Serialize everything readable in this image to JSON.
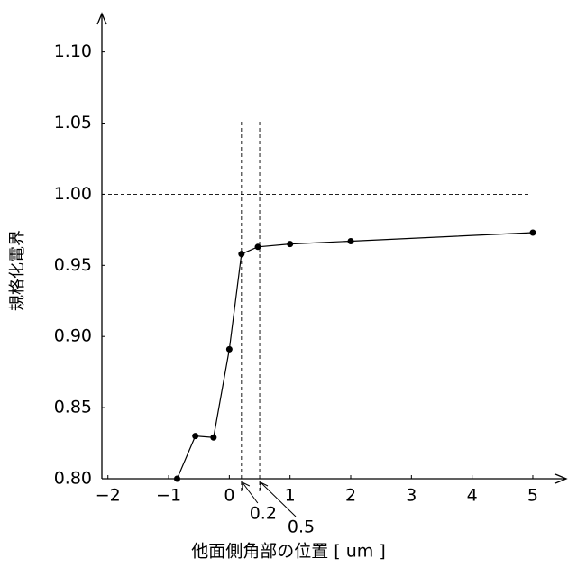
{
  "chart_data": {
    "type": "line",
    "x_label": "他面側角部の位置 [ um ]",
    "y_label": "規格化電界",
    "x": [
      -0.86,
      -0.56,
      -0.26,
      0,
      0.2,
      0.47,
      1,
      2,
      5
    ],
    "series": [
      {
        "color": "#000000",
        "values": [
          0.8,
          0.83,
          0.829,
          0.891,
          0.958,
          0.963,
          0.965,
          0.967,
          0.973
        ]
      }
    ],
    "xlim": [
      -2.1,
      5.55
    ],
    "ylim": [
      0.8,
      1.127
    ],
    "xticks": [
      {
        "value": -2,
        "label": "−2"
      },
      {
        "value": -1,
        "label": "−1"
      },
      0,
      1,
      2,
      3,
      4,
      5
    ],
    "yticks": [
      {
        "value": 0.8,
        "label": "0.80"
      },
      {
        "value": 0.85,
        "label": "0.85"
      },
      {
        "value": 0.9,
        "label": "0.90"
      },
      {
        "value": 0.95,
        "label": "0.95"
      },
      {
        "value": 1.0,
        "label": "1.00"
      },
      {
        "value": 1.05,
        "label": "1.05"
      },
      {
        "value": 1.1,
        "label": "1.10"
      }
    ],
    "reference_lines": {
      "x": [
        0.2,
        0.5
      ],
      "y": [
        1.0
      ]
    },
    "annotations": [
      {
        "text": "0.2",
        "x": 0.2
      },
      {
        "text": "0.5",
        "x": 0.5
      }
    ]
  }
}
